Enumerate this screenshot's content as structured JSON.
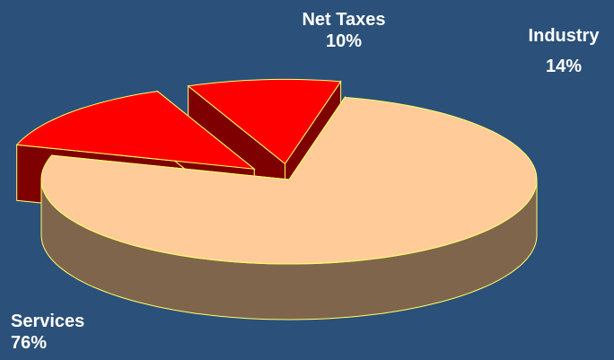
{
  "chart_data": {
    "type": "pie",
    "title": "",
    "categories": [
      "Services",
      "Industry",
      "Net Taxes"
    ],
    "values": [
      76,
      14,
      10
    ],
    "labels": [
      {
        "name": "Services",
        "value": "76%"
      },
      {
        "name": "Industry",
        "value": "14%"
      },
      {
        "name": "Net Taxes",
        "value": "10%"
      }
    ],
    "exploded": [
      "Industry",
      "Net Taxes"
    ],
    "legend": "none",
    "colors": {
      "Services": {
        "top": "#ffcc99",
        "side": "#7f654c"
      },
      "Industry": {
        "top": "#ff0000",
        "side": "#7f0000"
      },
      "Net Taxes": {
        "top": "#ff0000",
        "side": "#7f0000"
      },
      "outline": "#ffff66",
      "background": "#2b5079"
    }
  }
}
